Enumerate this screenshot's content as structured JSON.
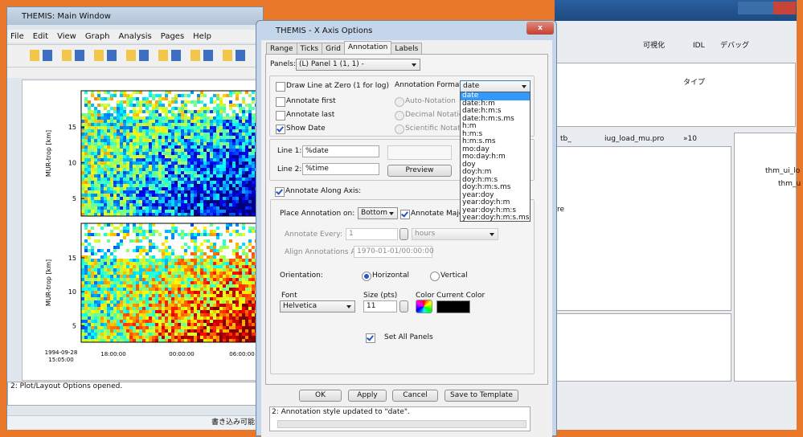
{
  "main_window": {
    "title": "THEMIS: Main Window",
    "menu": [
      "File",
      "Edit",
      "View",
      "Graph",
      "Analysis",
      "Pages",
      "Help"
    ],
    "plot": {
      "panels": [
        {
          "y_label": "MUR-trop [km]",
          "yticks": [
            "15",
            "10",
            "5"
          ]
        },
        {
          "y_label": "MUR-trop [km]",
          "yticks": [
            "15",
            "10",
            "5"
          ]
        }
      ],
      "x_start_date": "1994-09-28",
      "xticks": [
        "15:05:00",
        "18:00:00",
        "00:00:00",
        "06:00:00"
      ]
    },
    "status": "2: Plot/Layout Options opened.",
    "status_bar": "書き込み可能"
  },
  "ide": {
    "toolbar": [
      "可視化",
      "IDL",
      "デバッグ"
    ],
    "column": "タイプ",
    "editor_tabs": [
      "tb_",
      "iug_load_mu.pro",
      "»10"
    ],
    "outline": [
      "thm_ui_lo",
      "thm_u"
    ],
    "snippet": "re"
  },
  "dialog": {
    "title": "THEMIS - X Axis Options",
    "tabs": [
      "Range",
      "Ticks",
      "Grid",
      "Annotation",
      "Labels"
    ],
    "active_tab": 3,
    "panels_label": "Panels:",
    "panel_value": "(L) Panel 1 (1, 1) -",
    "checkboxes": [
      {
        "label": "Draw Line at Zero (1 for log)",
        "checked": false
      },
      {
        "label": "Annotate first",
        "checked": false
      },
      {
        "label": "Annotate last",
        "checked": false
      },
      {
        "label": "Show Date",
        "checked": true
      }
    ],
    "format_label": "Annotation Format:",
    "format_value": "date",
    "notation": [
      "Auto-Notation",
      "Decimal Notation",
      "Scientific Notation"
    ],
    "line1_label": "Line 1:",
    "line1": "%date",
    "line2_label": "Line 2:",
    "line2": "%time",
    "preview": "Preview",
    "along_axis": {
      "label": "Annotate Along Axis:",
      "checked": true
    },
    "place_label": "Place Annotation on:",
    "place_value": "Bottom",
    "annotate_major": {
      "label": "Annotate Major",
      "checked": true
    },
    "every_label": "Annotate Every:",
    "every_value": "1",
    "every_unit": "hours",
    "align_label": "Align Annotations At:",
    "align_value": "1970-01-01/00:00:00",
    "orientation_label": "Orientation:",
    "orientations": [
      {
        "label": "Horizontal",
        "selected": true
      },
      {
        "label": "Vertical",
        "selected": false
      }
    ],
    "font_label": "Font",
    "font_value": "Helvetica",
    "size_label": "Size (pts)",
    "size_value": "11",
    "color_label": "Color",
    "current_color_label": "Current Color",
    "current_color": "#000000",
    "set_all_panels": {
      "label": "Set All Panels",
      "checked": true
    },
    "buttons": [
      "OK",
      "Apply",
      "Cancel",
      "Save to Template"
    ],
    "status": "2: Annotation style updated to \"date\".",
    "format_options": [
      "date",
      "date:h:m",
      "date:h:m:s",
      "date:h:m:s.ms",
      "h:m",
      "h:m:s",
      "h:m:s.ms",
      "mo:day",
      "mo:day:h:m",
      "doy",
      "doy:h:m",
      "doy:h:m:s",
      "doy:h:m:s.ms",
      "year:doy",
      "year:doy:h:m",
      "year:doy:h:m:s",
      "year:doy:h:m:s.ms"
    ]
  }
}
